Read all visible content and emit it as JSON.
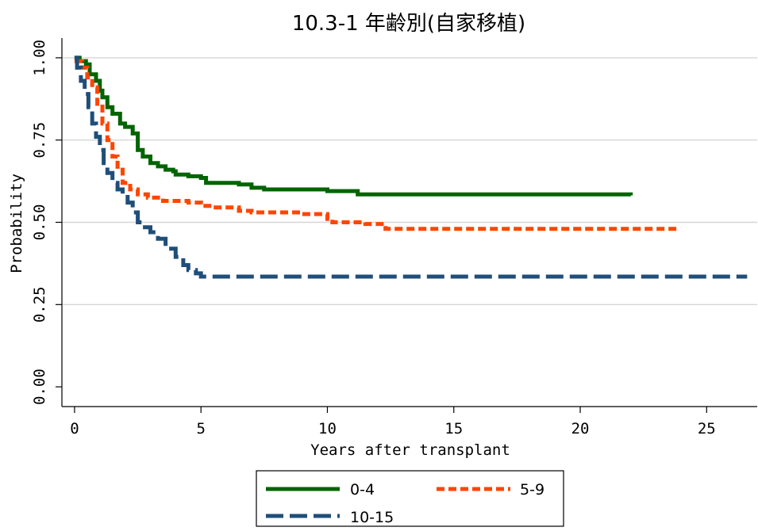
{
  "chart_data": {
    "type": "line",
    "title": "10.3-1 年齢別(自家移植)",
    "xlabel": "Years after transplant",
    "ylabel": "Probability",
    "xlim": [
      -0.5,
      27
    ],
    "ylim": [
      -0.06,
      1.06
    ],
    "xticks": [
      0,
      5,
      10,
      15,
      20,
      25
    ],
    "yticks": [
      0.0,
      0.25,
      0.5,
      0.75,
      1.0
    ],
    "ytick_labels": [
      "0.00",
      "0.25",
      "0.50",
      "0.75",
      "1.00"
    ],
    "grid": "horizontal",
    "legend_position": "bottom",
    "series": [
      {
        "name": "0-4",
        "color": "#006400",
        "style": "solid",
        "points": [
          [
            0,
            1.0
          ],
          [
            0.2,
            0.99
          ],
          [
            0.45,
            0.98
          ],
          [
            0.6,
            0.95
          ],
          [
            0.85,
            0.93
          ],
          [
            1.0,
            0.9
          ],
          [
            1.1,
            0.88
          ],
          [
            1.3,
            0.85
          ],
          [
            1.5,
            0.83
          ],
          [
            1.8,
            0.8
          ],
          [
            2.0,
            0.79
          ],
          [
            2.3,
            0.77
          ],
          [
            2.5,
            0.72
          ],
          [
            2.7,
            0.7
          ],
          [
            3.0,
            0.68
          ],
          [
            3.3,
            0.67
          ],
          [
            3.6,
            0.66
          ],
          [
            3.9,
            0.655
          ],
          [
            4.0,
            0.645
          ],
          [
            4.5,
            0.64
          ],
          [
            5.0,
            0.635
          ],
          [
            5.2,
            0.62
          ],
          [
            6.5,
            0.615
          ],
          [
            7.0,
            0.605
          ],
          [
            7.5,
            0.6
          ],
          [
            10.0,
            0.595
          ],
          [
            11.2,
            0.585
          ],
          [
            22.0,
            0.582
          ]
        ]
      },
      {
        "name": "5-9",
        "color": "#ff4500",
        "style": "short-dash",
        "points": [
          [
            0,
            0.99
          ],
          [
            0.3,
            0.97
          ],
          [
            0.5,
            0.94
          ],
          [
            0.7,
            0.91
          ],
          [
            0.9,
            0.86
          ],
          [
            1.1,
            0.8
          ],
          [
            1.3,
            0.75
          ],
          [
            1.5,
            0.7
          ],
          [
            1.7,
            0.66
          ],
          [
            1.9,
            0.62
          ],
          [
            2.2,
            0.6
          ],
          [
            2.5,
            0.585
          ],
          [
            2.9,
            0.575
          ],
          [
            3.5,
            0.565
          ],
          [
            4.5,
            0.56
          ],
          [
            5.0,
            0.55
          ],
          [
            5.5,
            0.545
          ],
          [
            6.5,
            0.535
          ],
          [
            7.0,
            0.53
          ],
          [
            9.0,
            0.525
          ],
          [
            10.0,
            0.51
          ],
          [
            10.2,
            0.5
          ],
          [
            11.5,
            0.495
          ],
          [
            12.3,
            0.48
          ],
          [
            23.8,
            0.48
          ]
        ]
      },
      {
        "name": "10-15",
        "color": "#1f4e79",
        "style": "long-dash",
        "points": [
          [
            0,
            1.0
          ],
          [
            0.1,
            0.97
          ],
          [
            0.25,
            0.93
          ],
          [
            0.4,
            0.89
          ],
          [
            0.55,
            0.85
          ],
          [
            0.7,
            0.8
          ],
          [
            0.85,
            0.76
          ],
          [
            1.0,
            0.72
          ],
          [
            1.15,
            0.68
          ],
          [
            1.3,
            0.65
          ],
          [
            1.5,
            0.62
          ],
          [
            1.7,
            0.6
          ],
          [
            1.9,
            0.585
          ],
          [
            2.1,
            0.56
          ],
          [
            2.3,
            0.53
          ],
          [
            2.5,
            0.5
          ],
          [
            2.7,
            0.485
          ],
          [
            3.0,
            0.47
          ],
          [
            3.3,
            0.45
          ],
          [
            3.6,
            0.42
          ],
          [
            4.0,
            0.395
          ],
          [
            4.3,
            0.37
          ],
          [
            4.5,
            0.355
          ],
          [
            4.8,
            0.345
          ],
          [
            5.0,
            0.335
          ],
          [
            26.6,
            0.335
          ]
        ]
      }
    ]
  },
  "legend": {
    "items": [
      {
        "label": "0-4"
      },
      {
        "label": "5-9"
      },
      {
        "label": "10-15"
      }
    ]
  }
}
